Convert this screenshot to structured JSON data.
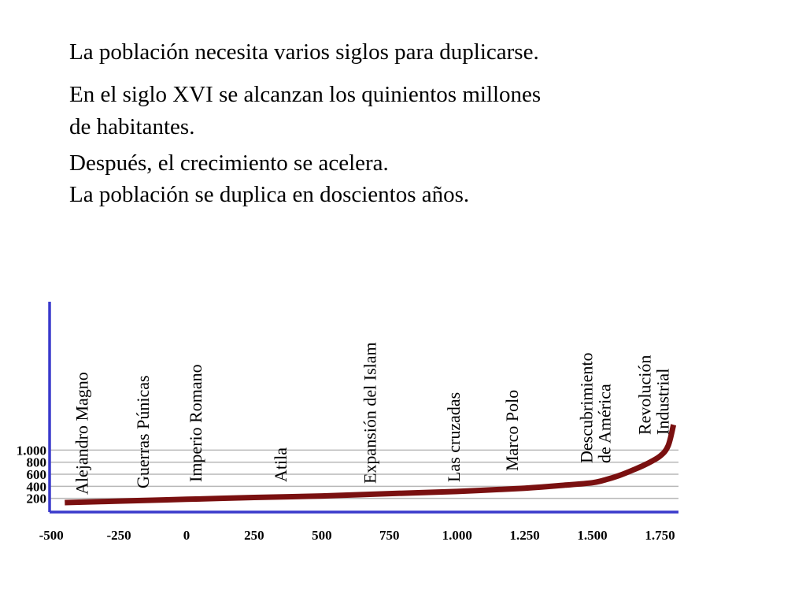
{
  "text_lines": [
    "La población necesita varios siglos para duplicarse.",
    "En el siglo XVI se alcanzan los quinientos millones",
    "de habitantes.",
    "Después, el crecimiento se acelera.",
    "La población se duplica en doscientos años."
  ],
  "chart_data": {
    "type": "line",
    "title": "",
    "xlabel": "",
    "ylabel": "",
    "x_ticks": [
      {
        "value": -500,
        "label": "-500"
      },
      {
        "value": -250,
        "label": "-250"
      },
      {
        "value": 0,
        "label": "0"
      },
      {
        "value": 250,
        "label": "250"
      },
      {
        "value": 500,
        "label": "500"
      },
      {
        "value": 750,
        "label": "750"
      },
      {
        "value": 1000,
        "label": "1.000"
      },
      {
        "value": 1250,
        "label": "1.250"
      },
      {
        "value": 1500,
        "label": "1.500"
      },
      {
        "value": 1750,
        "label": "1.750"
      }
    ],
    "y_ticks": [
      {
        "value": 200,
        "label": "200"
      },
      {
        "value": 400,
        "label": "400"
      },
      {
        "value": 600,
        "label": "600"
      },
      {
        "value": 800,
        "label": "800"
      },
      {
        "value": 1000,
        "label": "1.000"
      }
    ],
    "xlim": [
      -500,
      1800
    ],
    "ylim": [
      0,
      1000
    ],
    "grid": true,
    "colors": {
      "axis": "#3a3acc",
      "line": "#7a1010",
      "grid": "#b8b8b8"
    },
    "series": [
      {
        "x": [
          -450,
          -250,
          0,
          250,
          500,
          750,
          1000,
          1250,
          1400,
          1500,
          1550,
          1600,
          1650,
          1700,
          1750,
          1780,
          1800
        ],
        "y": [
          130,
          155,
          185,
          215,
          240,
          280,
          315,
          370,
          420,
          460,
          510,
          580,
          670,
          770,
          900,
          1070,
          1420
        ]
      }
    ],
    "annotations": [
      {
        "lines": [
          "Alejandro Magno"
        ],
        "x": -365
      },
      {
        "lines": [
          "Guerras Púnicas"
        ],
        "x": -140
      },
      {
        "lines": [
          "Imperio Romano"
        ],
        "x": 55
      },
      {
        "lines": [
          "Atila"
        ],
        "x": 370
      },
      {
        "lines": [
          "Expansión del Islam"
        ],
        "x": 700
      },
      {
        "lines": [
          "Las cruzadas"
        ],
        "x": 1010
      },
      {
        "lines": [
          "Marco Polo"
        ],
        "x": 1225
      },
      {
        "lines": [
          "Descubrimiento",
          "de América"
        ],
        "x": 1500
      },
      {
        "lines": [
          "Revolución",
          "Industrial"
        ],
        "x": 1715
      }
    ]
  }
}
